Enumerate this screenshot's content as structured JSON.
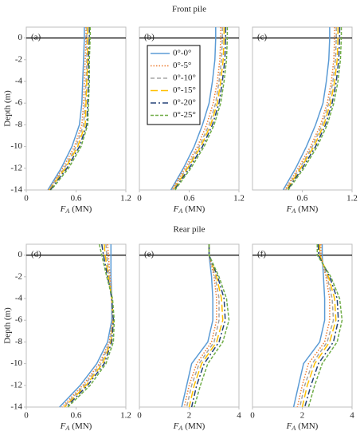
{
  "chart_data": [
    {
      "type": "line",
      "title": "Front pile",
      "panel": "(a)",
      "ylabel": "Depth (m)",
      "xlabel": {
        "symbol": "F",
        "subscript": "A",
        "unit": "(MN)"
      },
      "xlim": [
        0,
        1.2
      ],
      "xticks": [
        0,
        0.6,
        1.2
      ],
      "ylim": [
        -14,
        1
      ],
      "yticks": [
        0,
        -2,
        -4,
        -6,
        -8,
        -10,
        -12,
        -14
      ],
      "depth": [
        1,
        0,
        -2,
        -4,
        -6,
        -8,
        -10,
        -12,
        -14
      ],
      "series": [
        {
          "color": "#5b9bd5",
          "values": [
            0.7,
            0.7,
            0.69,
            0.68,
            0.67,
            0.64,
            0.55,
            0.42,
            0.26
          ]
        },
        {
          "color": "#ed7d31",
          "values": [
            0.72,
            0.72,
            0.71,
            0.7,
            0.69,
            0.67,
            0.58,
            0.44,
            0.27
          ]
        },
        {
          "color": "#a5a5a5",
          "values": [
            0.73,
            0.73,
            0.73,
            0.72,
            0.71,
            0.69,
            0.6,
            0.46,
            0.27
          ]
        },
        {
          "color": "#ffc000",
          "values": [
            0.74,
            0.74,
            0.74,
            0.73,
            0.72,
            0.71,
            0.62,
            0.47,
            0.28
          ]
        },
        {
          "color": "#264478",
          "values": [
            0.76,
            0.76,
            0.75,
            0.75,
            0.74,
            0.73,
            0.64,
            0.49,
            0.29
          ]
        },
        {
          "color": "#70ad47",
          "values": [
            0.77,
            0.77,
            0.76,
            0.76,
            0.75,
            0.74,
            0.66,
            0.51,
            0.3
          ]
        }
      ]
    },
    {
      "type": "line",
      "panel": "(b)",
      "xlabel": {
        "symbol": "F",
        "subscript": "A",
        "unit": "(MN)"
      },
      "xlim": [
        0,
        1.2
      ],
      "xticks": [
        0,
        0.6,
        1.2
      ],
      "ylim": [
        -14,
        1
      ],
      "depth": [
        1,
        0,
        -2,
        -4,
        -6,
        -8,
        -10,
        -12,
        -14
      ],
      "series": [
        {
          "name": "0°-0°",
          "color": "#5b9bd5",
          "values": [
            0.92,
            0.92,
            0.91,
            0.88,
            0.84,
            0.76,
            0.66,
            0.53,
            0.38
          ]
        },
        {
          "name": "0°-5°",
          "color": "#ed7d31",
          "values": [
            0.98,
            0.98,
            0.97,
            0.94,
            0.89,
            0.81,
            0.7,
            0.55,
            0.39
          ]
        },
        {
          "name": "0°-10°",
          "color": "#a5a5a5",
          "values": [
            1.0,
            1.0,
            0.99,
            0.96,
            0.92,
            0.84,
            0.72,
            0.57,
            0.4
          ]
        },
        {
          "name": "0°-15°",
          "color": "#ffc000",
          "values": [
            1.02,
            1.02,
            1.01,
            0.98,
            0.94,
            0.86,
            0.74,
            0.58,
            0.41
          ]
        },
        {
          "name": "0°-20°",
          "color": "#264478",
          "values": [
            1.04,
            1.04,
            1.03,
            1.0,
            0.96,
            0.88,
            0.76,
            0.6,
            0.42
          ]
        },
        {
          "name": "0°-25°",
          "color": "#70ad47",
          "values": [
            1.06,
            1.06,
            1.05,
            1.02,
            0.98,
            0.9,
            0.78,
            0.62,
            0.43
          ]
        }
      ]
    },
    {
      "type": "line",
      "panel": "(c)",
      "xlabel": {
        "symbol": "F",
        "subscript": "A",
        "unit": "(MN)"
      },
      "xlim": [
        0,
        1.2
      ],
      "xticks": [
        0.6,
        1.2
      ],
      "ylim": [
        -14,
        1
      ],
      "depth": [
        1,
        0,
        -2,
        -4,
        -6,
        -8,
        -10,
        -12,
        -14
      ],
      "series": [
        {
          "color": "#5b9bd5",
          "values": [
            0.93,
            0.93,
            0.92,
            0.89,
            0.85,
            0.76,
            0.65,
            0.52,
            0.37
          ]
        },
        {
          "color": "#ed7d31",
          "values": [
            0.99,
            0.99,
            0.98,
            0.95,
            0.9,
            0.82,
            0.7,
            0.55,
            0.39
          ]
        },
        {
          "color": "#a5a5a5",
          "values": [
            1.01,
            1.01,
            1.0,
            0.97,
            0.92,
            0.84,
            0.72,
            0.57,
            0.4
          ]
        },
        {
          "color": "#ffc000",
          "values": [
            1.03,
            1.03,
            1.02,
            0.99,
            0.94,
            0.86,
            0.74,
            0.58,
            0.41
          ]
        },
        {
          "color": "#264478",
          "values": [
            1.05,
            1.05,
            1.04,
            1.01,
            0.96,
            0.88,
            0.76,
            0.6,
            0.42
          ]
        },
        {
          "color": "#70ad47",
          "values": [
            1.07,
            1.07,
            1.06,
            1.03,
            0.98,
            0.9,
            0.78,
            0.62,
            0.43
          ]
        }
      ]
    },
    {
      "type": "line",
      "panel": "(d)",
      "ylabel": "Depth (m)",
      "xlabel": {
        "symbol": "F",
        "subscript": "A",
        "unit": "(MN)"
      },
      "xlim": [
        0,
        1.2
      ],
      "xticks": [
        0,
        0.6,
        1.2
      ],
      "ylim": [
        -14,
        1
      ],
      "yticks": [
        0,
        -2,
        -4,
        -6,
        -8,
        -10,
        -12,
        -14
      ],
      "depth": [
        1,
        0,
        -2,
        -4,
        -6,
        -8,
        -10,
        -12,
        -14
      ],
      "series": [
        {
          "color": "#5b9bd5",
          "values": [
            1.02,
            1.02,
            1.02,
            1.03,
            1.03,
            0.98,
            0.85,
            0.65,
            0.4
          ]
        },
        {
          "color": "#ed7d31",
          "values": [
            0.98,
            0.99,
            1.01,
            1.03,
            1.04,
            1.0,
            0.88,
            0.68,
            0.43
          ]
        },
        {
          "color": "#a5a5a5",
          "values": [
            0.96,
            0.97,
            1.0,
            1.03,
            1.04,
            1.01,
            0.9,
            0.7,
            0.45
          ]
        },
        {
          "color": "#ffc000",
          "values": [
            0.94,
            0.95,
            0.99,
            1.03,
            1.05,
            1.02,
            0.92,
            0.72,
            0.46
          ]
        },
        {
          "color": "#264478",
          "values": [
            0.91,
            0.93,
            0.98,
            1.03,
            1.05,
            1.03,
            0.94,
            0.74,
            0.48
          ]
        },
        {
          "color": "#70ad47",
          "values": [
            0.88,
            0.91,
            0.97,
            1.04,
            1.06,
            1.05,
            0.96,
            0.77,
            0.5
          ]
        }
      ]
    },
    {
      "type": "line",
      "title": "Rear pile",
      "panel": "(e)",
      "xlabel": {
        "symbol": "F",
        "subscript": "A",
        "unit": "(MN)"
      },
      "xlim": [
        0,
        4
      ],
      "xticks": [
        0,
        2,
        4
      ],
      "ylim": [
        -14,
        1
      ],
      "depth": [
        1,
        0,
        -2,
        -4,
        -6,
        -8,
        -10,
        -12,
        -14
      ],
      "series": [
        {
          "color": "#5b9bd5",
          "values": [
            2.8,
            2.8,
            2.9,
            2.95,
            2.95,
            2.75,
            2.1,
            1.9,
            1.7
          ]
        },
        {
          "color": "#ed7d31",
          "values": [
            2.8,
            2.8,
            3.0,
            3.1,
            3.1,
            2.9,
            2.3,
            2.0,
            1.8
          ]
        },
        {
          "color": "#a5a5a5",
          "values": [
            2.8,
            2.8,
            3.05,
            3.2,
            3.2,
            3.0,
            2.4,
            2.1,
            1.9
          ]
        },
        {
          "color": "#ffc000",
          "values": [
            2.8,
            2.8,
            3.1,
            3.3,
            3.35,
            3.1,
            2.5,
            2.2,
            2.0
          ]
        },
        {
          "color": "#264478",
          "values": [
            2.8,
            2.8,
            3.15,
            3.4,
            3.45,
            3.2,
            2.6,
            2.3,
            2.1
          ]
        },
        {
          "color": "#70ad47",
          "values": [
            2.8,
            2.8,
            3.2,
            3.5,
            3.6,
            3.35,
            2.75,
            2.45,
            2.2
          ]
        }
      ]
    },
    {
      "type": "line",
      "panel": "(f)",
      "xlabel": {
        "symbol": "F",
        "subscript": "A",
        "unit": "(MN)"
      },
      "xlim": [
        0,
        4
      ],
      "xticks": [
        0,
        2,
        4
      ],
      "ylim": [
        -14,
        1
      ],
      "depth": [
        1,
        0,
        -2,
        -4,
        -6,
        -8,
        -10,
        -12,
        -14
      ],
      "series": [
        {
          "color": "#5b9bd5",
          "values": [
            2.8,
            2.8,
            2.85,
            2.9,
            2.9,
            2.7,
            2.05,
            1.85,
            1.65
          ]
        },
        {
          "color": "#ed7d31",
          "values": [
            2.75,
            2.75,
            2.95,
            3.1,
            3.1,
            2.9,
            2.25,
            2.0,
            1.8
          ]
        },
        {
          "color": "#a5a5a5",
          "values": [
            2.7,
            2.7,
            3.0,
            3.2,
            3.25,
            3.0,
            2.4,
            2.1,
            1.9
          ]
        },
        {
          "color": "#ffc000",
          "values": [
            2.7,
            2.7,
            3.05,
            3.3,
            3.35,
            3.1,
            2.5,
            2.2,
            2.0
          ]
        },
        {
          "color": "#264478",
          "values": [
            2.65,
            2.65,
            3.1,
            3.4,
            3.45,
            3.25,
            2.65,
            2.35,
            2.1
          ]
        },
        {
          "color": "#70ad47",
          "values": [
            2.6,
            2.6,
            3.15,
            3.5,
            3.6,
            3.4,
            2.8,
            2.5,
            2.25
          ]
        }
      ]
    }
  ]
}
